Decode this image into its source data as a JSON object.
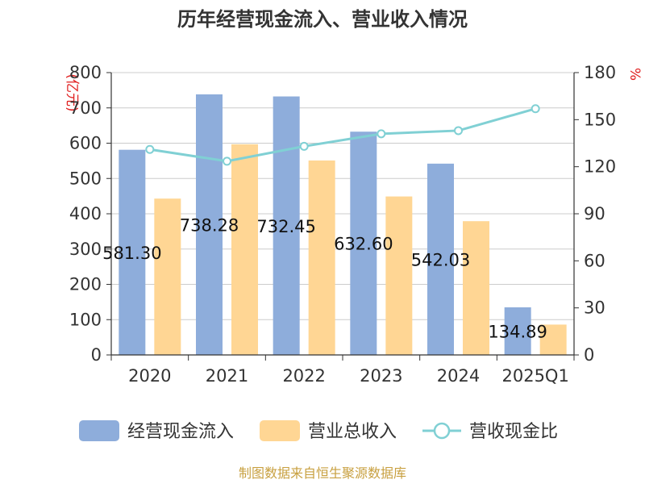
{
  "chart_data": {
    "type": "bar",
    "title": "历年经营现金流入、营业收入情况",
    "categories": [
      "2020",
      "2021",
      "2022",
      "2023",
      "2024",
      "2025Q1"
    ],
    "left_unit": "(亿元)",
    "right_unit": "%",
    "ylim_left": [
      0,
      800
    ],
    "yticks_left": [
      "0",
      "100",
      "200",
      "300",
      "400",
      "500",
      "600",
      "700",
      "800"
    ],
    "ylim_right": [
      0,
      180
    ],
    "yticks_right": [
      "0",
      "30",
      "60",
      "90",
      "120",
      "150",
      "180"
    ],
    "grid": true,
    "legend_position": "bottom",
    "series": [
      {
        "name": "经营现金流入",
        "type": "bar",
        "axis": "left",
        "color": "#8eaddb",
        "values": [
          581.3,
          738.28,
          732.45,
          632.6,
          542.03,
          134.89
        ],
        "labels": [
          "581.30",
          "738.28",
          "732.45",
          "632.60",
          "542.03",
          "134.89"
        ]
      },
      {
        "name": "营业总收入",
        "type": "bar",
        "axis": "left",
        "color": "#ffd694",
        "values": [
          443.0,
          597.0,
          551.0,
          449.0,
          379.0,
          86.0
        ]
      },
      {
        "name": "营收现金比",
        "type": "line",
        "axis": "right",
        "color": "#80d0d4",
        "values": [
          131.0,
          123.5,
          133.0,
          141.0,
          143.0,
          157.0
        ]
      }
    ],
    "source": "制图数据来自恒生聚源数据库"
  }
}
